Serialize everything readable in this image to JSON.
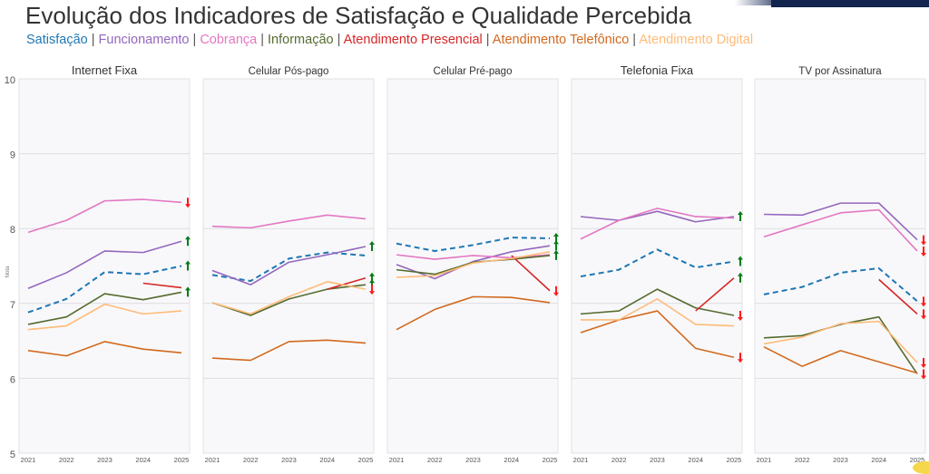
{
  "title": "Evolução dos Indicadores de Satisfação e Qualidade Percebida",
  "legend": [
    {
      "label": "Satisfação",
      "color": "#1f77b4"
    },
    {
      "label": "Funcionamento",
      "color": "#9467bd"
    },
    {
      "label": "Cobrança",
      "color": "#e377c2"
    },
    {
      "label": "Informação",
      "color": "#556b2f"
    },
    {
      "label": "Atendimento Presencial",
      "color": "#d62728"
    },
    {
      "label": "Atendimento Telefônico",
      "color": "#d2691e"
    },
    {
      "label": "Atendimento Digital",
      "color": "#ffbb78"
    }
  ],
  "legend_separator": " | ",
  "chart_data": {
    "type": "line",
    "title": "Evolução dos Indicadores de Satisfação e Qualidade Percebida",
    "ylabel": "Nota",
    "xlabel": "",
    "x": [
      "2021",
      "2022",
      "2023",
      "2024",
      "2025"
    ],
    "ylim": [
      5,
      10
    ],
    "yticks": [
      "5",
      "6",
      "7",
      "8",
      "9",
      "10"
    ],
    "grid": true,
    "legend_placement": "top-left",
    "trend_colors": {
      "up": "#0a7a1a",
      "down": "#ff1a1a"
    },
    "panels": [
      {
        "title": "Internet Fixa",
        "series": [
          {
            "name": "Satisfação",
            "values": [
              6.88,
              7.06,
              7.42,
              7.39,
              7.5
            ],
            "trend": "up"
          },
          {
            "name": "Funcionamento",
            "values": [
              7.2,
              7.41,
              7.7,
              7.68,
              7.83
            ],
            "trend": "up"
          },
          {
            "name": "Cobrança",
            "values": [
              7.95,
              8.11,
              8.37,
              8.39,
              8.35
            ],
            "trend": "down"
          },
          {
            "name": "Informação",
            "values": [
              6.72,
              6.82,
              7.13,
              7.05,
              7.15
            ],
            "trend": "up"
          },
          {
            "name": "Atendimento Presencial",
            "values": [
              null,
              null,
              null,
              7.27,
              7.21
            ],
            "trend": null
          },
          {
            "name": "Atendimento Telefônico",
            "values": [
              6.37,
              6.3,
              6.49,
              6.39,
              6.34
            ],
            "trend": null
          },
          {
            "name": "Atendimento Digital",
            "values": [
              6.65,
              6.7,
              6.99,
              6.86,
              6.9
            ],
            "trend": null
          }
        ]
      },
      {
        "title": "Celular Pós-pago",
        "series": [
          {
            "name": "Satisfação",
            "values": [
              7.38,
              7.3,
              7.6,
              7.68,
              7.64
            ],
            "trend": null
          },
          {
            "name": "Funcionamento",
            "values": [
              7.44,
              7.25,
              7.55,
              7.65,
              7.76
            ],
            "trend": "up"
          },
          {
            "name": "Cobrança",
            "values": [
              8.03,
              8.01,
              8.1,
              8.18,
              8.13
            ],
            "trend": null
          },
          {
            "name": "Informação",
            "values": [
              7.01,
              6.84,
              7.06,
              7.19,
              7.25
            ],
            "trend": "up"
          },
          {
            "name": "Atendimento Presencial",
            "values": [
              null,
              null,
              null,
              7.19,
              7.34
            ],
            "trend": "up"
          },
          {
            "name": "Atendimento Telefônico",
            "values": [
              6.27,
              6.24,
              6.49,
              6.51,
              6.47
            ],
            "trend": null
          },
          {
            "name": "Atendimento Digital",
            "values": [
              7.01,
              6.86,
              7.09,
              7.29,
              7.19
            ],
            "trend": "down"
          }
        ]
      },
      {
        "title": "Celular Pré-pago",
        "series": [
          {
            "name": "Satisfação",
            "values": [
              7.8,
              7.7,
              7.78,
              7.88,
              7.87
            ],
            "trend": "up"
          },
          {
            "name": "Funcionamento",
            "values": [
              7.52,
              7.33,
              7.56,
              7.69,
              7.77
            ],
            "trend": "up"
          },
          {
            "name": "Cobrança",
            "values": [
              7.65,
              7.59,
              7.64,
              7.61,
              7.65
            ],
            "trend": null
          },
          {
            "name": "Informação",
            "values": [
              7.45,
              7.39,
              7.55,
              7.59,
              7.64
            ],
            "trend": "up"
          },
          {
            "name": "Atendimento Presencial",
            "values": [
              null,
              null,
              null,
              7.64,
              7.17
            ],
            "trend": "down"
          },
          {
            "name": "Atendimento Telefônico",
            "values": [
              6.65,
              6.92,
              7.09,
              7.08,
              7.01
            ],
            "trend": null
          },
          {
            "name": "Atendimento Digital",
            "values": [
              7.35,
              7.37,
              7.54,
              7.6,
              7.69
            ],
            "trend": null
          }
        ]
      },
      {
        "title": "Telefonia Fixa",
        "series": [
          {
            "name": "Satisfação",
            "values": [
              7.36,
              7.45,
              7.72,
              7.48,
              7.56
            ],
            "trend": "up"
          },
          {
            "name": "Funcionamento",
            "values": [
              8.16,
              8.11,
              8.23,
              8.09,
              8.16
            ],
            "trend": "up"
          },
          {
            "name": "Cobrança",
            "values": [
              7.86,
              8.11,
              8.27,
              8.16,
              8.14
            ],
            "trend": null
          },
          {
            "name": "Informação",
            "values": [
              6.86,
              6.9,
              7.19,
              6.94,
              6.84
            ],
            "trend": "down"
          },
          {
            "name": "Atendimento Presencial",
            "values": [
              null,
              null,
              null,
              6.9,
              7.34
            ],
            "trend": "up"
          },
          {
            "name": "Atendimento Telefônico",
            "values": [
              6.61,
              6.78,
              6.9,
              6.4,
              6.28
            ],
            "trend": "down"
          },
          {
            "name": "Atendimento Digital",
            "values": [
              6.78,
              6.78,
              7.06,
              6.72,
              6.7
            ],
            "trend": null
          }
        ]
      },
      {
        "title": "TV por Assinatura",
        "series": [
          {
            "name": "Satisfação",
            "values": [
              7.12,
              7.22,
              7.41,
              7.47,
              7.03
            ],
            "trend": "down"
          },
          {
            "name": "Funcionamento",
            "values": [
              8.19,
              8.18,
              8.34,
              8.34,
              7.85
            ],
            "trend": "down"
          },
          {
            "name": "Cobrança",
            "values": [
              7.89,
              8.05,
              8.21,
              8.25,
              7.7
            ],
            "trend": "down"
          },
          {
            "name": "Informação",
            "values": [
              6.54,
              6.57,
              6.72,
              6.82,
              6.06
            ],
            "trend": "down"
          },
          {
            "name": "Atendimento Presencial",
            "values": [
              null,
              null,
              null,
              7.32,
              6.86
            ],
            "trend": "down"
          },
          {
            "name": "Atendimento Telefônico",
            "values": [
              6.42,
              6.16,
              6.37,
              6.22,
              6.07
            ],
            "trend": null
          },
          {
            "name": "Atendimento Digital",
            "values": [
              6.46,
              6.55,
              6.73,
              6.76,
              6.21
            ],
            "trend": "down"
          }
        ]
      }
    ]
  }
}
